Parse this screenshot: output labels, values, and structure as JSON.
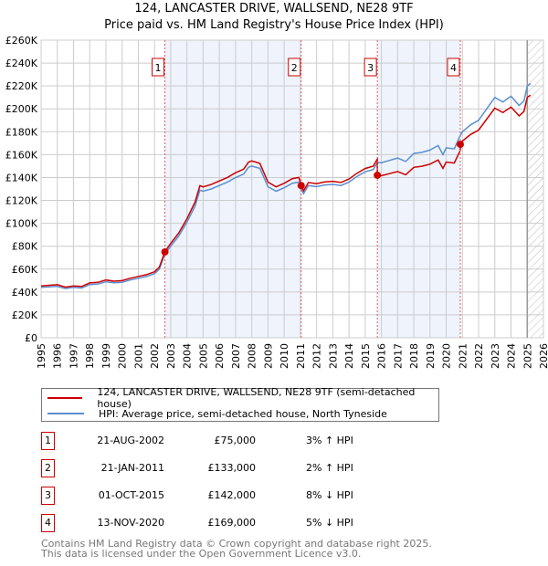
{
  "title": "124, LANCASTER DRIVE, WALLSEND, NE28 9TF",
  "subtitle": "Price paid vs. HM Land Registry's House Price Index (HPI)",
  "colors": {
    "price": "#cc0000",
    "hpi": "#5b8fd0",
    "shade": "#eef3fc",
    "grid": "#cccccc"
  },
  "chart_data": {
    "type": "line",
    "title": "124, LANCASTER DRIVE, WALLSEND, NE28 9TF",
    "xlim": [
      1995,
      2026
    ],
    "ylim": [
      0,
      260000
    ],
    "x_ticks": [
      "1995",
      "1996",
      "1997",
      "1998",
      "1999",
      "2000",
      "2001",
      "2002",
      "2003",
      "2004",
      "2005",
      "2006",
      "2007",
      "2008",
      "2009",
      "2010",
      "2011",
      "2012",
      "2013",
      "2014",
      "2015",
      "2016",
      "2017",
      "2018",
      "2019",
      "2020",
      "2021",
      "2022",
      "2023",
      "2024",
      "2025",
      "2026"
    ],
    "y_ticks": [
      {
        "v": 0,
        "label": "£0"
      },
      {
        "v": 20000,
        "label": "£20K"
      },
      {
        "v": 40000,
        "label": "£40K"
      },
      {
        "v": 60000,
        "label": "£60K"
      },
      {
        "v": 80000,
        "label": "£80K"
      },
      {
        "v": 100000,
        "label": "£100K"
      },
      {
        "v": 120000,
        "label": "£120K"
      },
      {
        "v": 140000,
        "label": "£140K"
      },
      {
        "v": 160000,
        "label": "£160K"
      },
      {
        "v": 180000,
        "label": "£180K"
      },
      {
        "v": 200000,
        "label": "£200K"
      },
      {
        "v": 220000,
        "label": "£220K"
      },
      {
        "v": 240000,
        "label": "£240K"
      },
      {
        "v": 260000,
        "label": "£260K"
      }
    ],
    "grid": true,
    "data_end": 2025.0,
    "hpi_series": {
      "name": "HPI: Average price, semi-detached house, North Tyneside",
      "x": [
        1995,
        1995.5,
        1996,
        1996.5,
        1997,
        1997.5,
        1998,
        1998.5,
        1999,
        1999.5,
        2000,
        2000.5,
        2001,
        2001.5,
        2002,
        2002.3,
        2002.64,
        2003,
        2003.5,
        2004,
        2004.5,
        2004.8,
        2005,
        2005.5,
        2006,
        2006.5,
        2007,
        2007.5,
        2007.8,
        2008,
        2008.5,
        2009,
        2009.5,
        2010,
        2010.5,
        2010.9,
        2011.05,
        2011.2,
        2011.5,
        2012,
        2012.5,
        2013,
        2013.5,
        2014,
        2014.5,
        2015,
        2015.5,
        2015.75,
        2016,
        2016.5,
        2017,
        2017.5,
        2018,
        2018.5,
        2019,
        2019.5,
        2019.8,
        2020,
        2020.5,
        2020.87,
        2021,
        2021.5,
        2022,
        2022.5,
        2023,
        2023.5,
        2024,
        2024.5,
        2024.8,
        2025,
        2025.2
      ],
      "y": [
        44000,
        44500,
        45000,
        43000,
        44000,
        43500,
        46500,
        47000,
        49000,
        48000,
        48500,
        50500,
        52000,
        53500,
        56000,
        60000,
        73000,
        80000,
        89000,
        101000,
        115000,
        129000,
        128000,
        130000,
        133000,
        136000,
        140000,
        143000,
        149000,
        150000,
        148000,
        132000,
        128000,
        131000,
        135000,
        136000,
        130000,
        126000,
        133000,
        132000,
        133500,
        134000,
        133000,
        136000,
        141000,
        145000,
        147000,
        153000,
        153000,
        155000,
        157000,
        154000,
        161000,
        162000,
        164000,
        168000,
        160000,
        166000,
        165000,
        177000,
        180000,
        186000,
        190000,
        200000,
        210000,
        206000,
        211000,
        203000,
        207000,
        220000,
        222000
      ]
    },
    "price_series": {
      "name": "124, LANCASTER DRIVE, WALLSEND, NE28 9TF (semi-detached house)",
      "segments": [
        {
          "from": 1995,
          "to": 2011.05,
          "ratio": 1.03
        },
        {
          "from": 2011.05,
          "to": 2015.75,
          "ratio": 1.02
        },
        {
          "from": 2015.75,
          "to": 2020.87,
          "ratio": 0.925
        },
        {
          "from": 2020.87,
          "to": 2025.2,
          "ratio": 0.955
        }
      ]
    },
    "sales": [
      {
        "n": "1",
        "x": 2002.64,
        "date": "21-AUG-2002",
        "price": 75000,
        "price_label": "£75,000",
        "hpi": "3% ↑ HPI"
      },
      {
        "n": "2",
        "x": 2011.05,
        "date": "21-JAN-2011",
        "price": 133000,
        "price_label": "£133,000",
        "hpi": "2% ↑ HPI"
      },
      {
        "n": "3",
        "x": 2015.75,
        "date": "01-OCT-2015",
        "price": 142000,
        "price_label": "£142,000",
        "hpi": "8% ↓ HPI"
      },
      {
        "n": "4",
        "x": 2020.87,
        "date": "13-NOV-2020",
        "price": 169000,
        "price_label": "£169,000",
        "hpi": "5% ↓ HPI"
      }
    ]
  },
  "legend": {
    "price": "124, LANCASTER DRIVE, WALLSEND, NE28 9TF (semi-detached house)",
    "hpi": "HPI: Average price, semi-detached house, North Tyneside"
  },
  "footer": {
    "line1": "Contains HM Land Registry data © Crown copyright and database right 2025.",
    "line2": "This data is licensed under the Open Government Licence v3.0."
  }
}
